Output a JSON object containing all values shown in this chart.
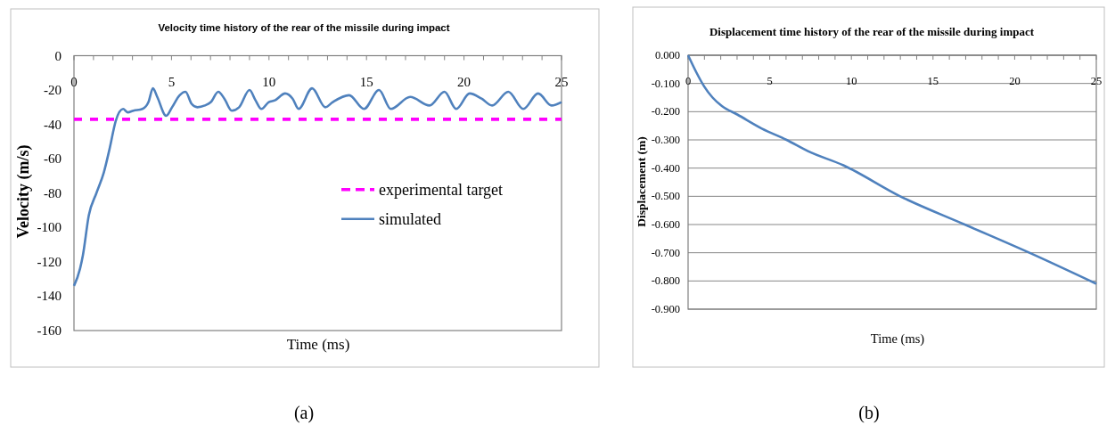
{
  "chart_data": [
    {
      "type": "line",
      "title": "Velocity time history of the rear of the missile during impact",
      "xlabel": "Time (ms)",
      "ylabel": "Velocity (m/s)",
      "xlim": [
        0,
        25
      ],
      "ylim": [
        -160,
        0
      ],
      "xticks": [
        0,
        {
          "value": 1,
          "label": null
        },
        {
          "value": 2,
          "label": null
        },
        {
          "value": 3,
          "label": null
        },
        {
          "value": 4,
          "label": null
        },
        5,
        {
          "value": 6,
          "label": null
        },
        {
          "value": 7,
          "label": null
        },
        {
          "value": 8,
          "label": null
        },
        {
          "value": 9,
          "label": null
        },
        10,
        {
          "value": 11,
          "label": null
        },
        {
          "value": 12,
          "label": null
        },
        {
          "value": 13,
          "label": null
        },
        {
          "value": 14,
          "label": null
        },
        15,
        {
          "value": 16,
          "label": null
        },
        {
          "value": 17,
          "label": null
        },
        {
          "value": 18,
          "label": null
        },
        {
          "value": 19,
          "label": null
        },
        20,
        {
          "value": 21,
          "label": null
        },
        {
          "value": 22,
          "label": null
        },
        {
          "value": 23,
          "label": null
        },
        {
          "value": 24,
          "label": null
        },
        25
      ],
      "yticks": [
        -160,
        -140,
        -120,
        -100,
        -80,
        -60,
        -40,
        -20,
        0
      ],
      "legend": "right",
      "series": [
        {
          "name": "experimental target",
          "color": "#ff00ff",
          "line_style": "dashed",
          "x": [
            0,
            25
          ],
          "values": [
            -37,
            -37
          ]
        },
        {
          "name": "simulated",
          "color": "#4f81bd",
          "x": [
            0,
            0.31,
            0.46,
            0.76,
            1.15,
            1.53,
            1.83,
            2.14,
            2.52,
            2.75,
            3.05,
            3.51,
            3.82,
            4.05,
            4.27,
            4.73,
            5.03,
            5.42,
            5.72,
            6.03,
            6.33,
            6.71,
            7.02,
            7.4,
            7.71,
            8.09,
            8.47,
            9.0,
            9.31,
            9.61,
            9.99,
            10.3,
            10.83,
            11.21,
            11.52,
            12.21,
            12.89,
            13.27,
            14.11,
            14.87,
            15.64,
            16.25,
            17.24,
            18.23,
            19.0,
            19.6,
            20.29,
            20.9,
            21.44,
            22.27,
            23.04,
            23.8,
            24.49,
            25
          ],
          "values": [
            -134,
            -124,
            -116,
            -93,
            -80,
            -68,
            -54,
            -38,
            -31,
            -33,
            -32,
            -31,
            -27,
            -19,
            -24,
            -35,
            -30,
            -23,
            -21,
            -28,
            -30,
            -29,
            -27,
            -21,
            -25,
            -32,
            -30,
            -20,
            -26,
            -31,
            -27,
            -26,
            -22,
            -25,
            -31,
            -19,
            -30,
            -27,
            -23,
            -31,
            -20,
            -31,
            -24,
            -29,
            -21,
            -31,
            -22,
            -25,
            -29,
            -21,
            -31,
            -22,
            -29,
            -27
          ]
        }
      ],
      "annotations": [
        "(a)"
      ]
    },
    {
      "type": "line",
      "title": "Displacement time history of the rear of the missile during impact",
      "xlabel": "Time (ms)",
      "ylabel": "Displacement (m)",
      "xlim": [
        0,
        25
      ],
      "ylim": [
        -0.9,
        0
      ],
      "xticks": [
        0,
        {
          "value": 1,
          "label": null
        },
        {
          "value": 2,
          "label": null
        },
        {
          "value": 3,
          "label": null
        },
        {
          "value": 4,
          "label": null
        },
        5,
        {
          "value": 6,
          "label": null
        },
        {
          "value": 7,
          "label": null
        },
        {
          "value": 8,
          "label": null
        },
        {
          "value": 9,
          "label": null
        },
        10,
        {
          "value": 11,
          "label": null
        },
        {
          "value": 12,
          "label": null
        },
        {
          "value": 13,
          "label": null
        },
        {
          "value": 14,
          "label": null
        },
        15,
        {
          "value": 16,
          "label": null
        },
        {
          "value": 17,
          "label": null
        },
        {
          "value": 18,
          "label": null
        },
        {
          "value": 19,
          "label": null
        },
        20,
        {
          "value": 21,
          "label": null
        },
        {
          "value": 22,
          "label": null
        },
        {
          "value": 23,
          "label": null
        },
        {
          "value": 24,
          "label": null
        },
        25
      ],
      "yticks": [
        {
          "value": -0.9,
          "label": "-0.900"
        },
        {
          "value": -0.8,
          "label": "-0.800"
        },
        {
          "value": -0.7,
          "label": "-0.700"
        },
        {
          "value": -0.6,
          "label": "-0.600"
        },
        {
          "value": -0.5,
          "label": "-0.500"
        },
        {
          "value": -0.4,
          "label": "-0.400"
        },
        {
          "value": -0.3,
          "label": "-0.300"
        },
        {
          "value": -0.2,
          "label": "-0.200"
        },
        {
          "value": -0.1,
          "label": "-0.100"
        },
        {
          "value": 0,
          "label": "0.000"
        }
      ],
      "grid": "y",
      "series": [
        {
          "color": "#4f81bd",
          "x": [
            0,
            0.5,
            0.98,
            1.5,
            2.07,
            3.01,
            4.52,
            6.03,
            7.34,
            9.51,
            12.99,
            16.94,
            20.9,
            25
          ],
          "values": [
            0,
            -0.06,
            -0.11,
            -0.15,
            -0.18,
            -0.21,
            -0.26,
            -0.3,
            -0.34,
            -0.39,
            -0.5,
            -0.6,
            -0.7,
            -0.81
          ]
        }
      ],
      "annotations": [
        "(b)"
      ]
    }
  ]
}
